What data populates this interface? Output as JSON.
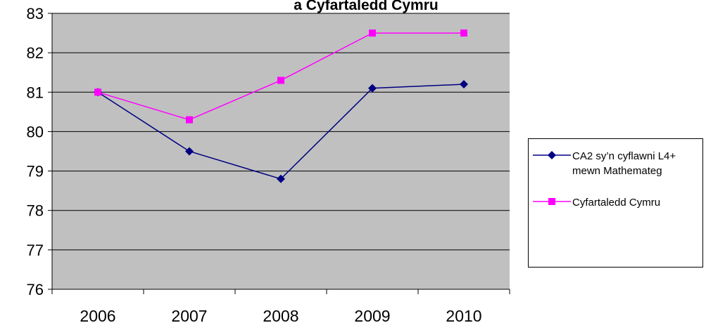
{
  "chart_data": {
    "type": "line",
    "title": "a Cyfartaledd Cymru",
    "categories": [
      "2006",
      "2007",
      "2008",
      "2009",
      "2010"
    ],
    "series": [
      {
        "name": "CA2 sy’n cyflawni L4+ mewn Mathemateg",
        "color": "#000080",
        "marker": "diamond",
        "values": [
          81.0,
          79.5,
          78.8,
          81.1,
          81.2
        ]
      },
      {
        "name": "Cyfartaledd Cymru",
        "color": "#ff00ff",
        "marker": "square",
        "values": [
          81.0,
          80.3,
          81.3,
          82.5,
          82.5
        ]
      }
    ],
    "ylim": [
      76,
      83
    ],
    "yticks": [
      76,
      77,
      78,
      79,
      80,
      81,
      82,
      83
    ],
    "grid": true,
    "legend": "right"
  }
}
